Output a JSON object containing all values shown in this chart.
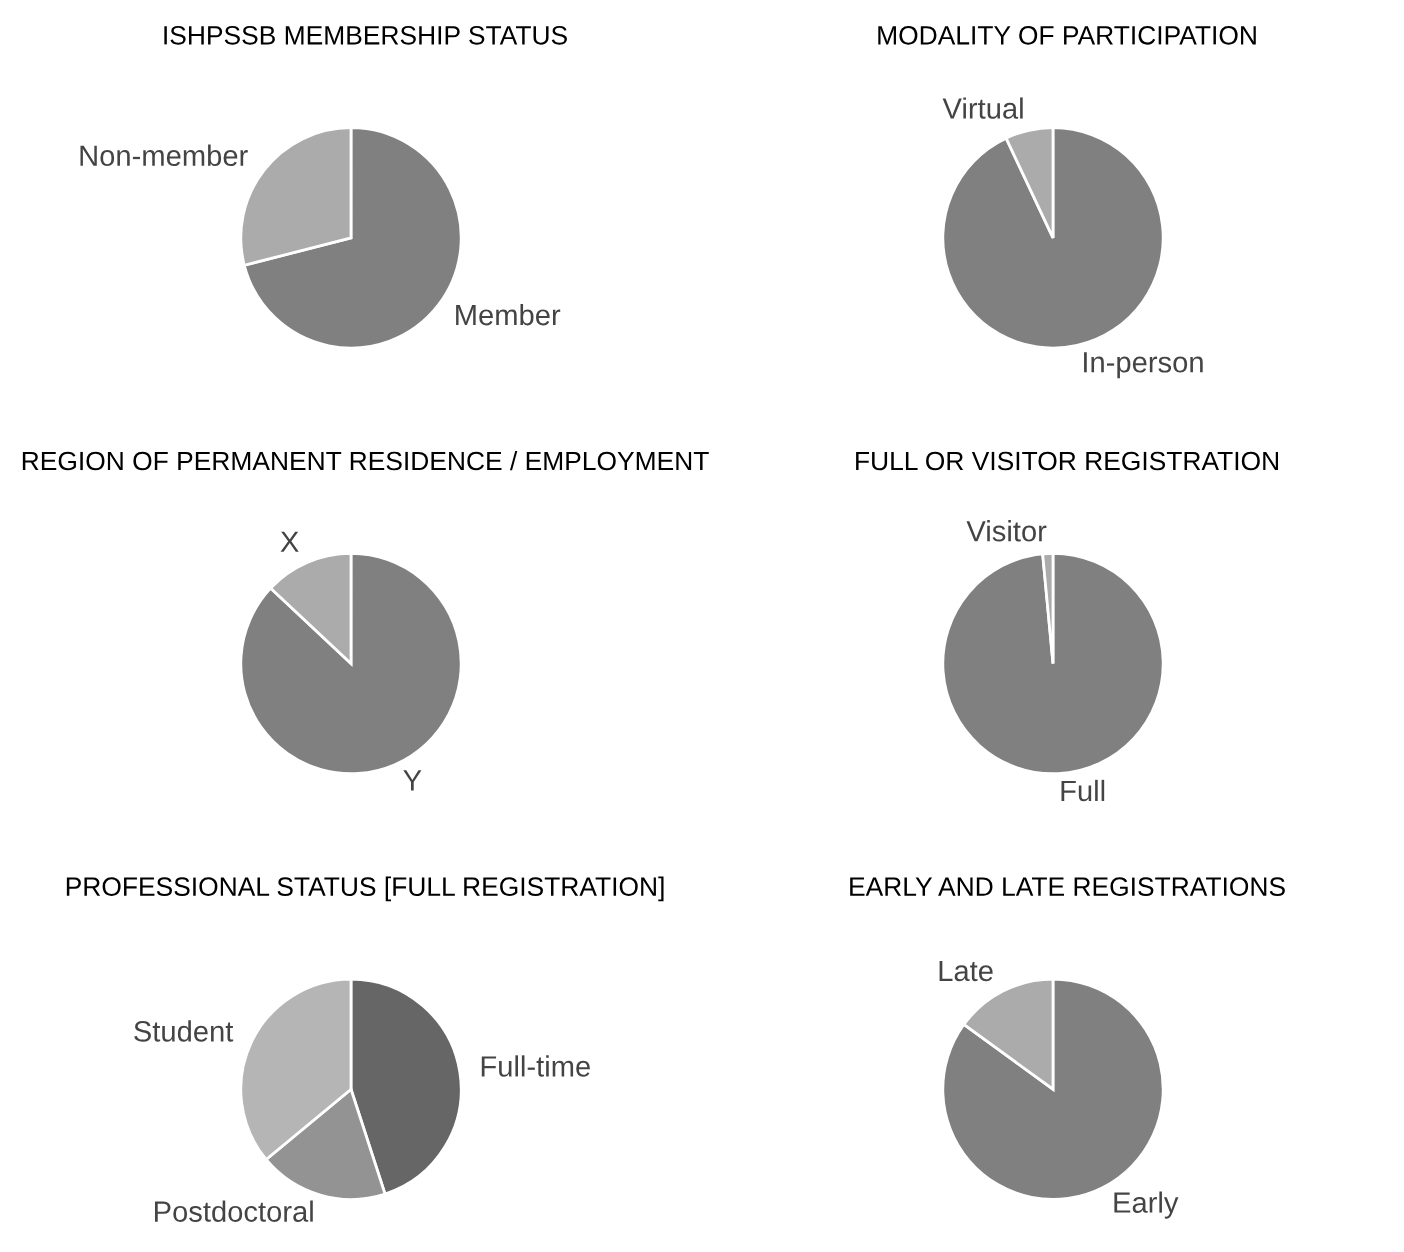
{
  "chart_data": [
    {
      "type": "pie",
      "title": "ISHPSSB MEMBERSHIP STATUS",
      "categories": [
        "Member",
        "Non-member"
      ],
      "values": [
        71,
        29
      ],
      "colors": [
        "#808080",
        "#ababab"
      ]
    },
    {
      "type": "pie",
      "title": "MODALITY OF PARTICIPATION",
      "categories": [
        "In-person",
        "Virtual"
      ],
      "values": [
        93,
        7
      ],
      "colors": [
        "#808080",
        "#ababab"
      ]
    },
    {
      "type": "pie",
      "title": "REGION OF PERMANENT RESIDENCE / EMPLOYMENT",
      "categories": [
        "Y",
        "X"
      ],
      "values": [
        87,
        13
      ],
      "colors": [
        "#808080",
        "#ababab"
      ]
    },
    {
      "type": "pie",
      "title": "FULL OR VISITOR REGISTRATION",
      "categories": [
        "Full",
        "Visitor"
      ],
      "values": [
        98.5,
        1.5
      ],
      "colors": [
        "#808080",
        "#ababab"
      ]
    },
    {
      "type": "pie",
      "title": "PROFESSIONAL STATUS [FULL REGISTRATION]",
      "categories": [
        "Full-time",
        "Postdoctoral",
        "Student"
      ],
      "values": [
        45,
        19,
        36
      ],
      "colors": [
        "#666666",
        "#939393",
        "#b5b5b5"
      ]
    },
    {
      "type": "pie",
      "title": "EARLY AND LATE REGISTRATIONS",
      "categories": [
        "Early",
        "Late"
      ],
      "values": [
        85,
        15
      ],
      "colors": [
        "#808080",
        "#ababab"
      ]
    }
  ]
}
